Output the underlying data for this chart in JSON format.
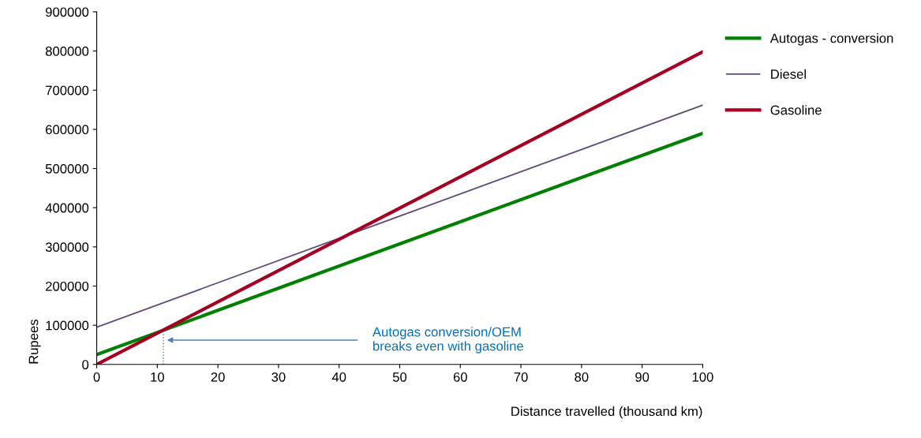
{
  "chart_data": {
    "type": "line",
    "xlabel": "Distance travelled (thousand km)",
    "ylabel": "Rupees",
    "x": [
      0,
      100
    ],
    "series": [
      {
        "name": "Autogas - conversion",
        "color": "#008000",
        "values": [
          25000,
          590000
        ]
      },
      {
        "name": "Diesel",
        "color": "#604a7b",
        "values": [
          95000,
          662000
        ]
      },
      {
        "name": "Gasoline",
        "color": "#a50021",
        "values": [
          0,
          798000
        ]
      }
    ],
    "xlim": [
      0,
      100
    ],
    "xticks": [
      0,
      10,
      20,
      30,
      40,
      50,
      60,
      70,
      80,
      90,
      100
    ],
    "ylim": [
      0,
      900000
    ],
    "yticks": [
      0,
      100000,
      200000,
      300000,
      400000,
      500000,
      600000,
      700000,
      800000,
      900000
    ],
    "ref_lines": [
      {
        "axis": "x",
        "value": 11,
        "color": "#4f81bd",
        "line_style": "dotted"
      }
    ],
    "annotations": [
      "Autogas conversion/OEM\nbreaks even with gasoline"
    ],
    "grid": false,
    "legend": "right",
    "marker": "none",
    "line_style": "solid"
  }
}
